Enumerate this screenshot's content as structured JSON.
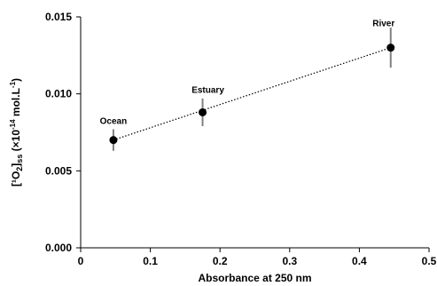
{
  "chart_data": {
    "type": "scatter",
    "title": "",
    "xlabel": "Absorbance at 250 nm",
    "ylabel": {
      "main": "[¹O",
      "sub2": "2",
      "close": "]",
      "subss": "ss",
      "units_a": " (×10",
      "exp_a": "-14",
      "units_b": " mol.L",
      "exp_b": "-1",
      "units_c": ")"
    },
    "xlim": [
      0,
      0.5
    ],
    "ylim": [
      0,
      0.015
    ],
    "x_ticks": [
      "0",
      "0.1",
      "0.2",
      "0.3",
      "0.4",
      "0.5"
    ],
    "y_ticks": [
      "0.000",
      "0.005",
      "0.010",
      "0.015"
    ],
    "x_tick_values": [
      0,
      0.1,
      0.2,
      0.3,
      0.4,
      0.5
    ],
    "y_tick_values": [
      0,
      0.005,
      0.01,
      0.015
    ],
    "grid": false,
    "legend": "none",
    "series": [
      {
        "points": [
          {
            "label": "Ocean",
            "x": 0.047,
            "y": 0.007,
            "err": 0.0007
          },
          {
            "label": "Estuary",
            "x": 0.175,
            "y": 0.0088,
            "err": 0.0009
          },
          {
            "label": "River",
            "x": 0.445,
            "y": 0.013,
            "err": 0.0013
          }
        ]
      }
    ],
    "trendline": {
      "style": "dotted",
      "x": [
        0.047,
        0.445
      ],
      "y": [
        0.007,
        0.013
      ]
    },
    "colors": {
      "marker": "#000000",
      "errorbar": "#808080",
      "axis": "#000000",
      "trend": "#000000"
    }
  }
}
